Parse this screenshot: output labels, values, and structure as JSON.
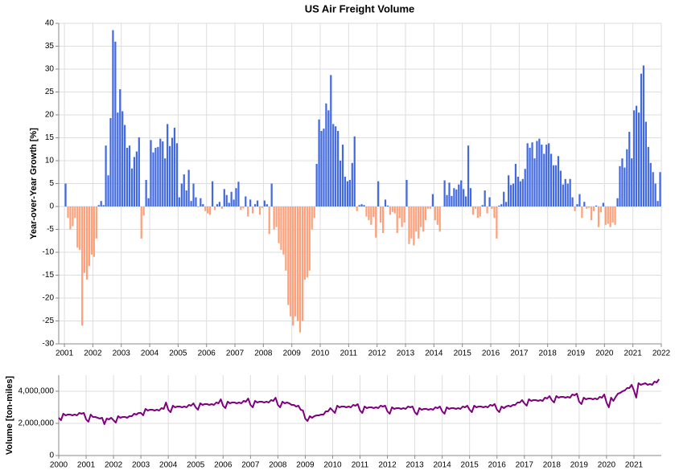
{
  "chart_data": [
    {
      "type": "bar",
      "title": "US Air Freight Volume",
      "y_label": "Year-over-Year Growth [%]",
      "positive_color": "#4169e1",
      "negative_color": "#ffa07a",
      "grid": true,
      "xlim": [
        2000.8,
        2022
      ],
      "xticks": [
        2001,
        2002,
        2003,
        2004,
        2005,
        2006,
        2007,
        2008,
        2009,
        2010,
        2011,
        2012,
        2013,
        2014,
        2015,
        2016,
        2017,
        2018,
        2019,
        2020,
        2021,
        2022
      ],
      "ylim": [
        -30,
        40
      ],
      "yticks": [
        -30,
        -25,
        -20,
        -15,
        -10,
        -5,
        0,
        5,
        10,
        15,
        20,
        25,
        30,
        35,
        40
      ],
      "x": [
        "2001-01",
        "2001-02",
        "2001-03",
        "2001-04",
        "2001-05",
        "2001-06",
        "2001-07",
        "2001-08",
        "2001-09",
        "2001-10",
        "2001-11",
        "2001-12",
        "2002-01",
        "2002-02",
        "2002-03",
        "2002-04",
        "2002-05",
        "2002-06",
        "2002-07",
        "2002-08",
        "2002-09",
        "2002-10",
        "2002-11",
        "2002-12",
        "2003-01",
        "2003-02",
        "2003-03",
        "2003-04",
        "2003-05",
        "2003-06",
        "2003-07",
        "2003-08",
        "2003-09",
        "2003-10",
        "2003-11",
        "2003-12",
        "2004-01",
        "2004-02",
        "2004-03",
        "2004-04",
        "2004-05",
        "2004-06",
        "2004-07",
        "2004-08",
        "2004-09",
        "2004-10",
        "2004-11",
        "2004-12",
        "2005-01",
        "2005-02",
        "2005-03",
        "2005-04",
        "2005-05",
        "2005-06",
        "2005-07",
        "2005-08",
        "2005-09",
        "2005-10",
        "2005-11",
        "2005-12",
        "2006-01",
        "2006-02",
        "2006-03",
        "2006-04",
        "2006-05",
        "2006-06",
        "2006-07",
        "2006-08",
        "2006-09",
        "2006-10",
        "2006-11",
        "2006-12",
        "2007-01",
        "2007-02",
        "2007-03",
        "2007-04",
        "2007-05",
        "2007-06",
        "2007-07",
        "2007-08",
        "2007-09",
        "2007-10",
        "2007-11",
        "2007-12",
        "2008-01",
        "2008-02",
        "2008-03",
        "2008-04",
        "2008-05",
        "2008-06",
        "2008-07",
        "2008-08",
        "2008-09",
        "2008-10",
        "2008-11",
        "2008-12",
        "2009-01",
        "2009-02",
        "2009-03",
        "2009-04",
        "2009-05",
        "2009-06",
        "2009-07",
        "2009-08",
        "2009-09",
        "2009-10",
        "2009-11",
        "2009-12",
        "2010-01",
        "2010-02",
        "2010-03",
        "2010-04",
        "2010-05",
        "2010-06",
        "2010-07",
        "2010-08",
        "2010-09",
        "2010-10",
        "2010-11",
        "2010-12",
        "2011-01",
        "2011-02",
        "2011-03",
        "2011-04",
        "2011-05",
        "2011-06",
        "2011-07",
        "2011-08",
        "2011-09",
        "2011-10",
        "2011-11",
        "2011-12",
        "2012-01",
        "2012-02",
        "2012-03",
        "2012-04",
        "2012-05",
        "2012-06",
        "2012-07",
        "2012-08",
        "2012-09",
        "2012-10",
        "2012-11",
        "2012-12",
        "2013-01",
        "2013-02",
        "2013-03",
        "2013-04",
        "2013-05",
        "2013-06",
        "2013-07",
        "2013-08",
        "2013-09",
        "2013-10",
        "2013-11",
        "2013-12",
        "2014-01",
        "2014-02",
        "2014-03",
        "2014-04",
        "2014-05",
        "2014-06",
        "2014-07",
        "2014-08",
        "2014-09",
        "2014-10",
        "2014-11",
        "2014-12",
        "2015-01",
        "2015-02",
        "2015-03",
        "2015-04",
        "2015-05",
        "2015-06",
        "2015-07",
        "2015-08",
        "2015-09",
        "2015-10",
        "2015-11",
        "2015-12",
        "2016-01",
        "2016-02",
        "2016-03",
        "2016-04",
        "2016-05",
        "2016-06",
        "2016-07",
        "2016-08",
        "2016-09",
        "2016-10",
        "2016-11",
        "2016-12",
        "2017-01",
        "2017-02",
        "2017-03",
        "2017-04",
        "2017-05",
        "2017-06",
        "2017-07",
        "2017-08",
        "2017-09",
        "2017-10",
        "2017-11",
        "2017-12",
        "2018-01",
        "2018-02",
        "2018-03",
        "2018-04",
        "2018-05",
        "2018-06",
        "2018-07",
        "2018-08",
        "2018-09",
        "2018-10",
        "2018-11",
        "2018-12",
        "2019-01",
        "2019-02",
        "2019-03",
        "2019-04",
        "2019-05",
        "2019-06",
        "2019-07",
        "2019-08",
        "2019-09",
        "2019-10",
        "2019-11",
        "2019-12",
        "2020-01",
        "2020-02",
        "2020-03",
        "2020-04",
        "2020-05",
        "2020-06",
        "2020-07",
        "2020-08",
        "2020-09",
        "2020-10",
        "2020-11",
        "2020-12",
        "2021-01",
        "2021-02",
        "2021-03",
        "2021-04",
        "2021-05",
        "2021-06",
        "2021-07",
        "2021-08",
        "2021-09",
        "2021-10",
        "2021-11",
        "2021-12"
      ],
      "values": [
        5,
        -2.5,
        -5,
        -4.3,
        -2.5,
        -9,
        -9.5,
        -26,
        -14.5,
        -16,
        -13,
        -10.5,
        -11,
        -7,
        0.3,
        1.2,
        0.3,
        13.3,
        6.8,
        19.3,
        38.5,
        36,
        20.5,
        25.6,
        20.8,
        17.8,
        12.8,
        13.3,
        8.3,
        10.8,
        12,
        15.1,
        -7,
        -2,
        5.8,
        1.8,
        14.5,
        11.8,
        12.8,
        13,
        14.8,
        14.2,
        10.5,
        18,
        13.2,
        15,
        17.2,
        13.8,
        2,
        5,
        7,
        3.5,
        8,
        1.2,
        5,
        2,
        -0.2,
        1.8,
        0.5,
        -1,
        -1.5,
        -1.8,
        5.5,
        -0.8,
        0.5,
        1,
        -0.5,
        3.8,
        2.5,
        0.8,
        3.2,
        1.5,
        4,
        5.4,
        -0.8,
        -0.4,
        2.2,
        -2.2,
        1.5,
        -1.5,
        0.5,
        1.3,
        -1.8,
        -0.3,
        1.3,
        0.5,
        -6,
        5,
        -5,
        -4.5,
        -8,
        -9.5,
        -10.5,
        -14,
        -21.5,
        -24,
        -26,
        -24,
        -25,
        -27.5,
        -25,
        -16,
        -15.5,
        -14,
        -5,
        -2.5,
        9.3,
        19,
        16.5,
        17,
        22.5,
        21,
        28.7,
        18,
        17.5,
        16.5,
        10,
        13.5,
        6.5,
        5.5,
        5.8,
        9.5,
        15.3,
        -1,
        0.3,
        0.5,
        0.3,
        -2.2,
        -3,
        -4,
        -2.3,
        -6.8,
        5.5,
        -3.5,
        -5.8,
        1.5,
        0.2,
        -1.8,
        -1.2,
        -1.5,
        -5.8,
        -2.5,
        -4.5,
        -3.5,
        5.8,
        -8.2,
        -7,
        -8.5,
        -5.5,
        -7,
        -4.5,
        -5.5,
        -3,
        -0.5,
        -0.5,
        2.7,
        -3,
        -4,
        -5.5,
        0,
        5.7,
        2.5,
        5.2,
        2.3,
        4,
        3.7,
        4.8,
        5.7,
        3.8,
        2.2,
        13.3,
        4,
        -1.8,
        -0.5,
        -2.5,
        -2.2,
        0.3,
        3.5,
        -1.5,
        2,
        -0.5,
        -2.5,
        -7,
        0.2,
        0.5,
        3.2,
        1,
        6.8,
        4.7,
        5,
        9.3,
        6.5,
        5.5,
        6,
        8.2,
        13.8,
        12.8,
        14,
        10.5,
        14.3,
        14.8,
        13.5,
        11.5,
        13.5,
        13.8,
        11.5,
        9,
        9,
        11,
        7.8,
        4.8,
        6,
        5,
        6,
        2,
        -1,
        0.5,
        2.7,
        -2.5,
        1,
        -0.5,
        -0.3,
        -3,
        -1,
        0.2,
        -4.5,
        -1.3,
        0.8,
        -4,
        -3.8,
        -4.5,
        -3.5,
        -4,
        1.8,
        8.8,
        10.5,
        8.5,
        12.5,
        16.3,
        10.5,
        21,
        22,
        20.5,
        29,
        30.8,
        18.5,
        13,
        9.5,
        7.5,
        5,
        1.2,
        7.5
      ]
    },
    {
      "type": "line",
      "y_label": "Volume [ton-miles]",
      "color": "#800080",
      "grid": true,
      "xlim": [
        2000,
        2022
      ],
      "xticks": [
        2000,
        2001,
        2002,
        2003,
        2004,
        2005,
        2006,
        2007,
        2008,
        2009,
        2010,
        2011,
        2012,
        2013,
        2014,
        2015,
        2016,
        2017,
        2018,
        2019,
        2020,
        2021
      ],
      "ylim": [
        0,
        5000000
      ],
      "yticks": [
        0,
        {
          "value": 2000000,
          "label": "2,000,000"
        },
        {
          "value": 4000000,
          "label": "4,000,000"
        }
      ],
      "x": [
        "2000-01",
        "2000-02",
        "2000-03",
        "2000-04",
        "2000-05",
        "2000-06",
        "2000-07",
        "2000-08",
        "2000-09",
        "2000-10",
        "2000-11",
        "2000-12",
        "2001-01",
        "2001-02",
        "2001-03",
        "2001-04",
        "2001-05",
        "2001-06",
        "2001-07",
        "2001-08",
        "2001-09",
        "2001-10",
        "2001-11",
        "2001-12",
        "2002-01",
        "2002-02",
        "2002-03",
        "2002-04",
        "2002-05",
        "2002-06",
        "2002-07",
        "2002-08",
        "2002-09",
        "2002-10",
        "2002-11",
        "2002-12",
        "2003-01",
        "2003-02",
        "2003-03",
        "2003-04",
        "2003-05",
        "2003-06",
        "2003-07",
        "2003-08",
        "2003-09",
        "2003-10",
        "2003-11",
        "2003-12",
        "2004-01",
        "2004-02",
        "2004-03",
        "2004-04",
        "2004-05",
        "2004-06",
        "2004-07",
        "2004-08",
        "2004-09",
        "2004-10",
        "2004-11",
        "2004-12",
        "2005-01",
        "2005-02",
        "2005-03",
        "2005-04",
        "2005-05",
        "2005-06",
        "2005-07",
        "2005-08",
        "2005-09",
        "2005-10",
        "2005-11",
        "2005-12",
        "2006-01",
        "2006-02",
        "2006-03",
        "2006-04",
        "2006-05",
        "2006-06",
        "2006-07",
        "2006-08",
        "2006-09",
        "2006-10",
        "2006-11",
        "2006-12",
        "2007-01",
        "2007-02",
        "2007-03",
        "2007-04",
        "2007-05",
        "2007-06",
        "2007-07",
        "2007-08",
        "2007-09",
        "2007-10",
        "2007-11",
        "2007-12",
        "2008-01",
        "2008-02",
        "2008-03",
        "2008-04",
        "2008-05",
        "2008-06",
        "2008-07",
        "2008-08",
        "2008-09",
        "2008-10",
        "2008-11",
        "2008-12",
        "2009-01",
        "2009-02",
        "2009-03",
        "2009-04",
        "2009-05",
        "2009-06",
        "2009-07",
        "2009-08",
        "2009-09",
        "2009-10",
        "2009-11",
        "2009-12",
        "2010-01",
        "2010-02",
        "2010-03",
        "2010-04",
        "2010-05",
        "2010-06",
        "2010-07",
        "2010-08",
        "2010-09",
        "2010-10",
        "2010-11",
        "2010-12",
        "2011-01",
        "2011-02",
        "2011-03",
        "2011-04",
        "2011-05",
        "2011-06",
        "2011-07",
        "2011-08",
        "2011-09",
        "2011-10",
        "2011-11",
        "2011-12",
        "2012-01",
        "2012-02",
        "2012-03",
        "2012-04",
        "2012-05",
        "2012-06",
        "2012-07",
        "2012-08",
        "2012-09",
        "2012-10",
        "2012-11",
        "2012-12",
        "2013-01",
        "2013-02",
        "2013-03",
        "2013-04",
        "2013-05",
        "2013-06",
        "2013-07",
        "2013-08",
        "2013-09",
        "2013-10",
        "2013-11",
        "2013-12",
        "2014-01",
        "2014-02",
        "2014-03",
        "2014-04",
        "2014-05",
        "2014-06",
        "2014-07",
        "2014-08",
        "2014-09",
        "2014-10",
        "2014-11",
        "2014-12",
        "2015-01",
        "2015-02",
        "2015-03",
        "2015-04",
        "2015-05",
        "2015-06",
        "2015-07",
        "2015-08",
        "2015-09",
        "2015-10",
        "2015-11",
        "2015-12",
        "2016-01",
        "2016-02",
        "2016-03",
        "2016-04",
        "2016-05",
        "2016-06",
        "2016-07",
        "2016-08",
        "2016-09",
        "2016-10",
        "2016-11",
        "2016-12",
        "2017-01",
        "2017-02",
        "2017-03",
        "2017-04",
        "2017-05",
        "2017-06",
        "2017-07",
        "2017-08",
        "2017-09",
        "2017-10",
        "2017-11",
        "2017-12",
        "2018-01",
        "2018-02",
        "2018-03",
        "2018-04",
        "2018-05",
        "2018-06",
        "2018-07",
        "2018-08",
        "2018-09",
        "2018-10",
        "2018-11",
        "2018-12",
        "2019-01",
        "2019-02",
        "2019-03",
        "2019-04",
        "2019-05",
        "2019-06",
        "2019-07",
        "2019-08",
        "2019-09",
        "2019-10",
        "2019-11",
        "2019-12",
        "2020-01",
        "2020-02",
        "2020-03",
        "2020-04",
        "2020-05",
        "2020-06",
        "2020-07",
        "2020-08",
        "2020-09",
        "2020-10",
        "2020-11",
        "2020-12",
        "2021-01",
        "2021-02",
        "2021-03",
        "2021-04",
        "2021-05",
        "2021-06",
        "2021-07",
        "2021-08",
        "2021-09",
        "2021-10",
        "2021-11",
        "2021-12"
      ],
      "values": [
        2350000,
        2200000,
        2600000,
        2500000,
        2550000,
        2550000,
        2500000,
        2550000,
        2500000,
        2650000,
        2600000,
        2650000,
        2250000,
        2100000,
        2550000,
        2400000,
        2400000,
        2350000,
        2300000,
        2350000,
        1950000,
        2300000,
        2250000,
        2350000,
        2200000,
        2050000,
        2450000,
        2350000,
        2400000,
        2400000,
        2350000,
        2450000,
        2450000,
        2600000,
        2550000,
        2650000,
        2650000,
        2500000,
        2900000,
        2800000,
        2850000,
        2850000,
        2800000,
        2850000,
        2800000,
        2950000,
        2900000,
        3300000,
        2850000,
        2700000,
        3100000,
        3000000,
        3050000,
        3050000,
        3000000,
        3050000,
        3000000,
        3150000,
        3100000,
        3250000,
        3000000,
        2850000,
        3250000,
        3150000,
        3200000,
        3200000,
        3150000,
        3200000,
        3150000,
        3300000,
        3250000,
        3500000,
        3100000,
        2950000,
        3350000,
        3250000,
        3300000,
        3300000,
        3250000,
        3300000,
        3250000,
        3400000,
        3350000,
        3550000,
        3150000,
        3000000,
        3400000,
        3300000,
        3350000,
        3350000,
        3300000,
        3350000,
        3300000,
        3450000,
        3400000,
        3600000,
        3150000,
        3000000,
        3350000,
        3250000,
        3300000,
        3250000,
        3150000,
        3150000,
        3050000,
        3100000,
        2850000,
        2800000,
        2300000,
        2150000,
        2450000,
        2350000,
        2450000,
        2500000,
        2500000,
        2550000,
        2550000,
        2750000,
        2750000,
        2950000,
        2800000,
        2650000,
        3100000,
        3000000,
        3050000,
        3050000,
        3000000,
        3050000,
        3000000,
        3150000,
        3100000,
        3200000,
        2800000,
        2650000,
        3050000,
        2950000,
        3000000,
        3000000,
        2950000,
        3000000,
        2950000,
        3100000,
        3050000,
        3100000,
        2750000,
        2600000,
        3000000,
        2900000,
        2950000,
        2950000,
        2900000,
        2950000,
        2900000,
        3050000,
        3000000,
        3050000,
        2700000,
        2550000,
        2950000,
        2850000,
        2900000,
        2900000,
        2850000,
        2900000,
        2850000,
        3000000,
        2950000,
        3050000,
        2750000,
        2600000,
        3000000,
        2900000,
        2950000,
        2950000,
        2900000,
        2950000,
        2900000,
        3050000,
        3000000,
        3100000,
        2850000,
        2700000,
        3100000,
        3000000,
        3050000,
        3050000,
        3000000,
        3050000,
        3000000,
        3150000,
        3100000,
        3200000,
        2850000,
        2700000,
        3050000,
        2950000,
        3050000,
        3100000,
        3050000,
        3150000,
        3150000,
        3300000,
        3300000,
        3450000,
        3250000,
        3100000,
        3500000,
        3400000,
        3450000,
        3450000,
        3400000,
        3450000,
        3400000,
        3600000,
        3550000,
        3700000,
        3450000,
        3300000,
        3700000,
        3600000,
        3650000,
        3650000,
        3600000,
        3650000,
        3600000,
        3800000,
        3750000,
        3850000,
        3350000,
        3200000,
        3600000,
        3500000,
        3550000,
        3550000,
        3500000,
        3550000,
        3500000,
        3650000,
        3600000,
        3800000,
        3300000,
        3000000,
        3600000,
        3400000,
        3650000,
        3850000,
        3900000,
        4000000,
        4050000,
        4200000,
        4200000,
        4400000,
        4050000,
        3600000,
        4500000,
        4400000,
        4450000,
        4500000,
        4400000,
        4450000,
        4400000,
        4600000,
        4550000,
        4750000
      ]
    }
  ]
}
